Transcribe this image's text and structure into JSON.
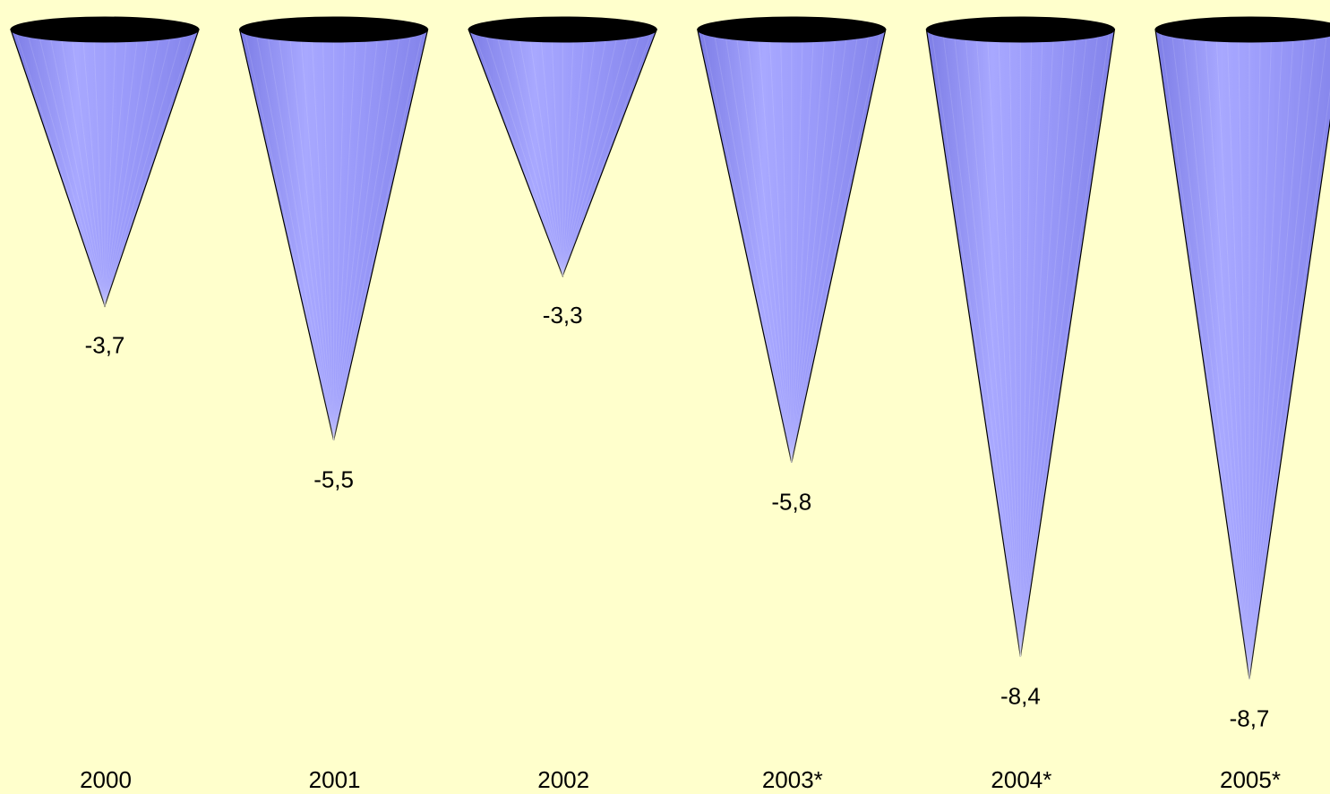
{
  "chart_data": {
    "type": "bar",
    "style": "inverted-cone",
    "categories": [
      "2000",
      "2001",
      "2002",
      "2003*",
      "2004*",
      "2005*"
    ],
    "values": [
      -3.7,
      -5.5,
      -3.3,
      -5.8,
      -8.4,
      -8.7
    ],
    "value_labels": [
      "-3,7",
      "-5,5",
      "-3,3",
      "-5,8",
      "-8,4",
      "-8,7"
    ],
    "title": "",
    "xlabel": "",
    "ylabel": "",
    "ylim": [
      -9,
      0
    ],
    "grid": false,
    "legend": "none"
  },
  "colors": {
    "background": "#ffffcc",
    "cone_fill": "#9999ff",
    "cone_top": "#000000",
    "outline": "#000000"
  }
}
